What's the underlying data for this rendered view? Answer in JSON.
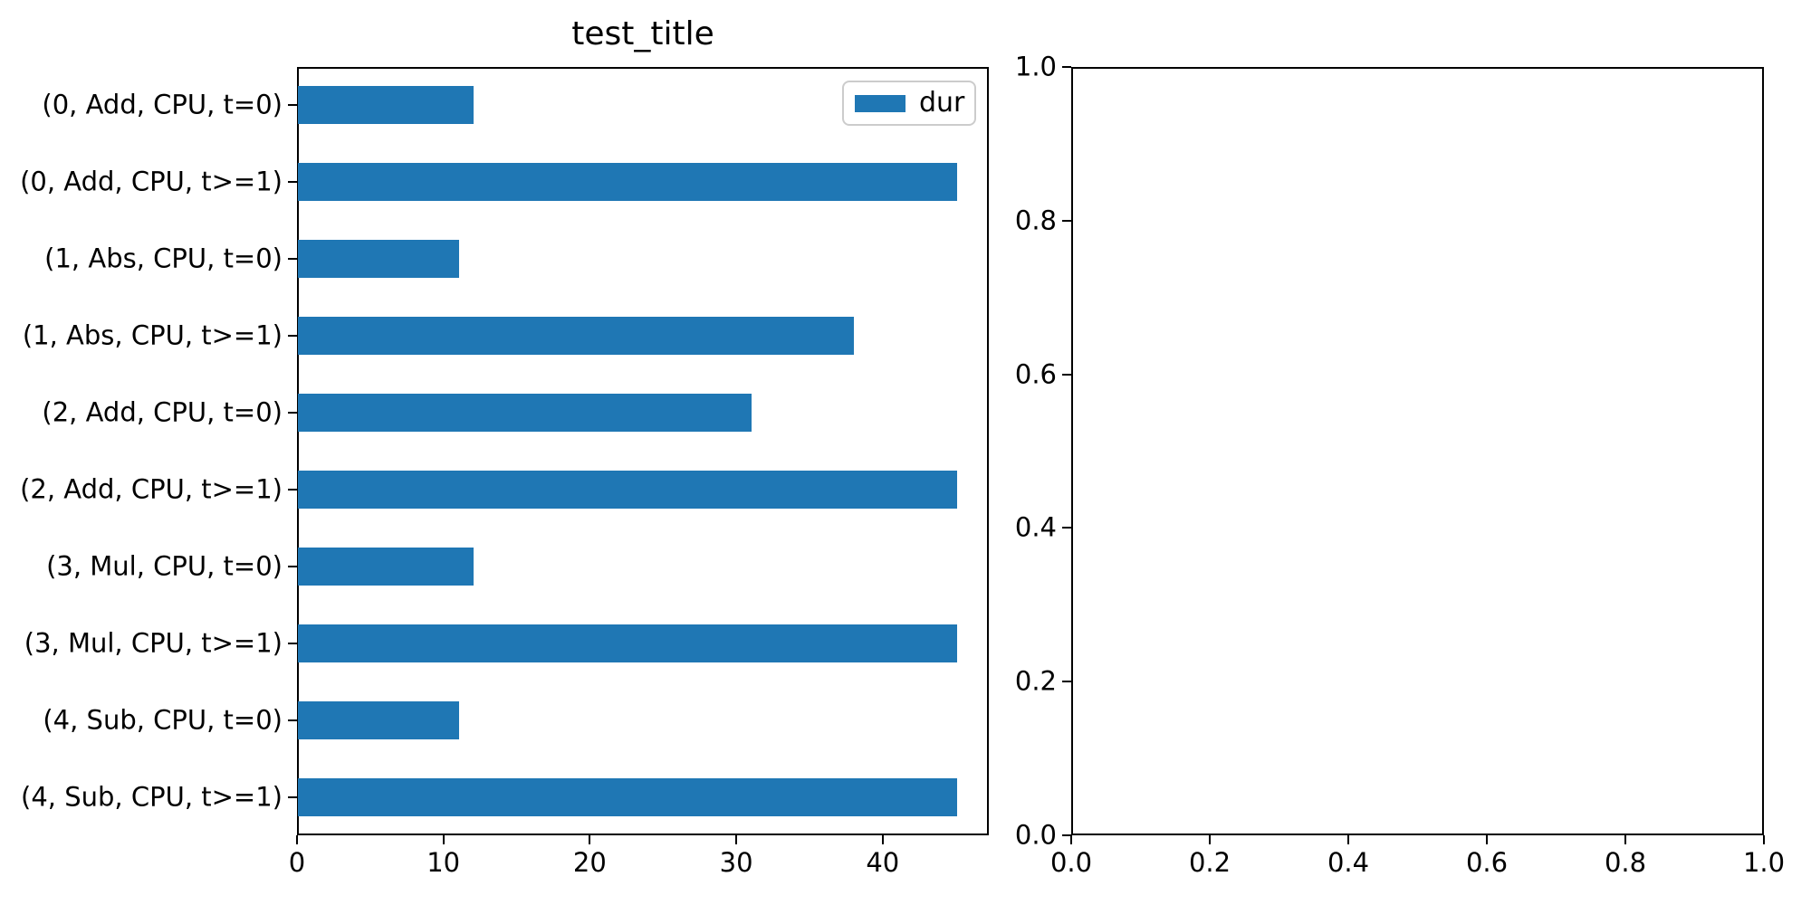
{
  "figure_title": "test_title",
  "legend": {
    "label": "dur",
    "swatch_color": "#1f77b4",
    "position": "upper right"
  },
  "chart_data": [
    {
      "type": "bar",
      "orientation": "horizontal",
      "title": "test_title",
      "series": [
        {
          "name": "dur",
          "values": [
            12,
            45,
            11,
            38,
            31,
            45,
            12,
            45,
            11,
            45
          ]
        }
      ],
      "categories": [
        "(0, Add, CPU, t=0)",
        "(0, Add, CPU, t>=1)",
        "(1, Abs, CPU, t=0)",
        "(1, Abs, CPU, t>=1)",
        "(2, Add, CPU, t=0)",
        "(2, Add, CPU, t>=1)",
        "(3, Mul, CPU, t=0)",
        "(3, Mul, CPU, t>=1)",
        "(4, Sub, CPU, t=0)",
        "(4, Sub, CPU, t>=1)"
      ],
      "category_order": "top-to-bottom",
      "bar_color": "#1f77b4",
      "xlabel": "",
      "ylabel": "",
      "xlim": [
        0,
        47.25
      ],
      "x_ticks": [
        0,
        10,
        20,
        30,
        40
      ],
      "x_tick_labels": [
        "0",
        "10",
        "20",
        "30",
        "40"
      ],
      "grid": false,
      "legend_entries": [
        "dur"
      ],
      "legend_position": "upper right"
    },
    {
      "type": "bar",
      "note": "empty axes, no data plotted",
      "title": "",
      "series": [],
      "xlim": [
        0.0,
        1.0
      ],
      "ylim": [
        0.0,
        1.0
      ],
      "x_ticks": [
        0.0,
        0.2,
        0.4,
        0.6,
        0.8,
        1.0
      ],
      "y_ticks": [
        0.0,
        0.2,
        0.4,
        0.6,
        0.8,
        1.0
      ],
      "x_tick_labels": [
        "0.0",
        "0.2",
        "0.4",
        "0.6",
        "0.8",
        "1.0"
      ],
      "y_tick_labels": [
        "0.0",
        "0.2",
        "0.4",
        "0.6",
        "0.8",
        "1.0"
      ],
      "grid": false
    }
  ]
}
